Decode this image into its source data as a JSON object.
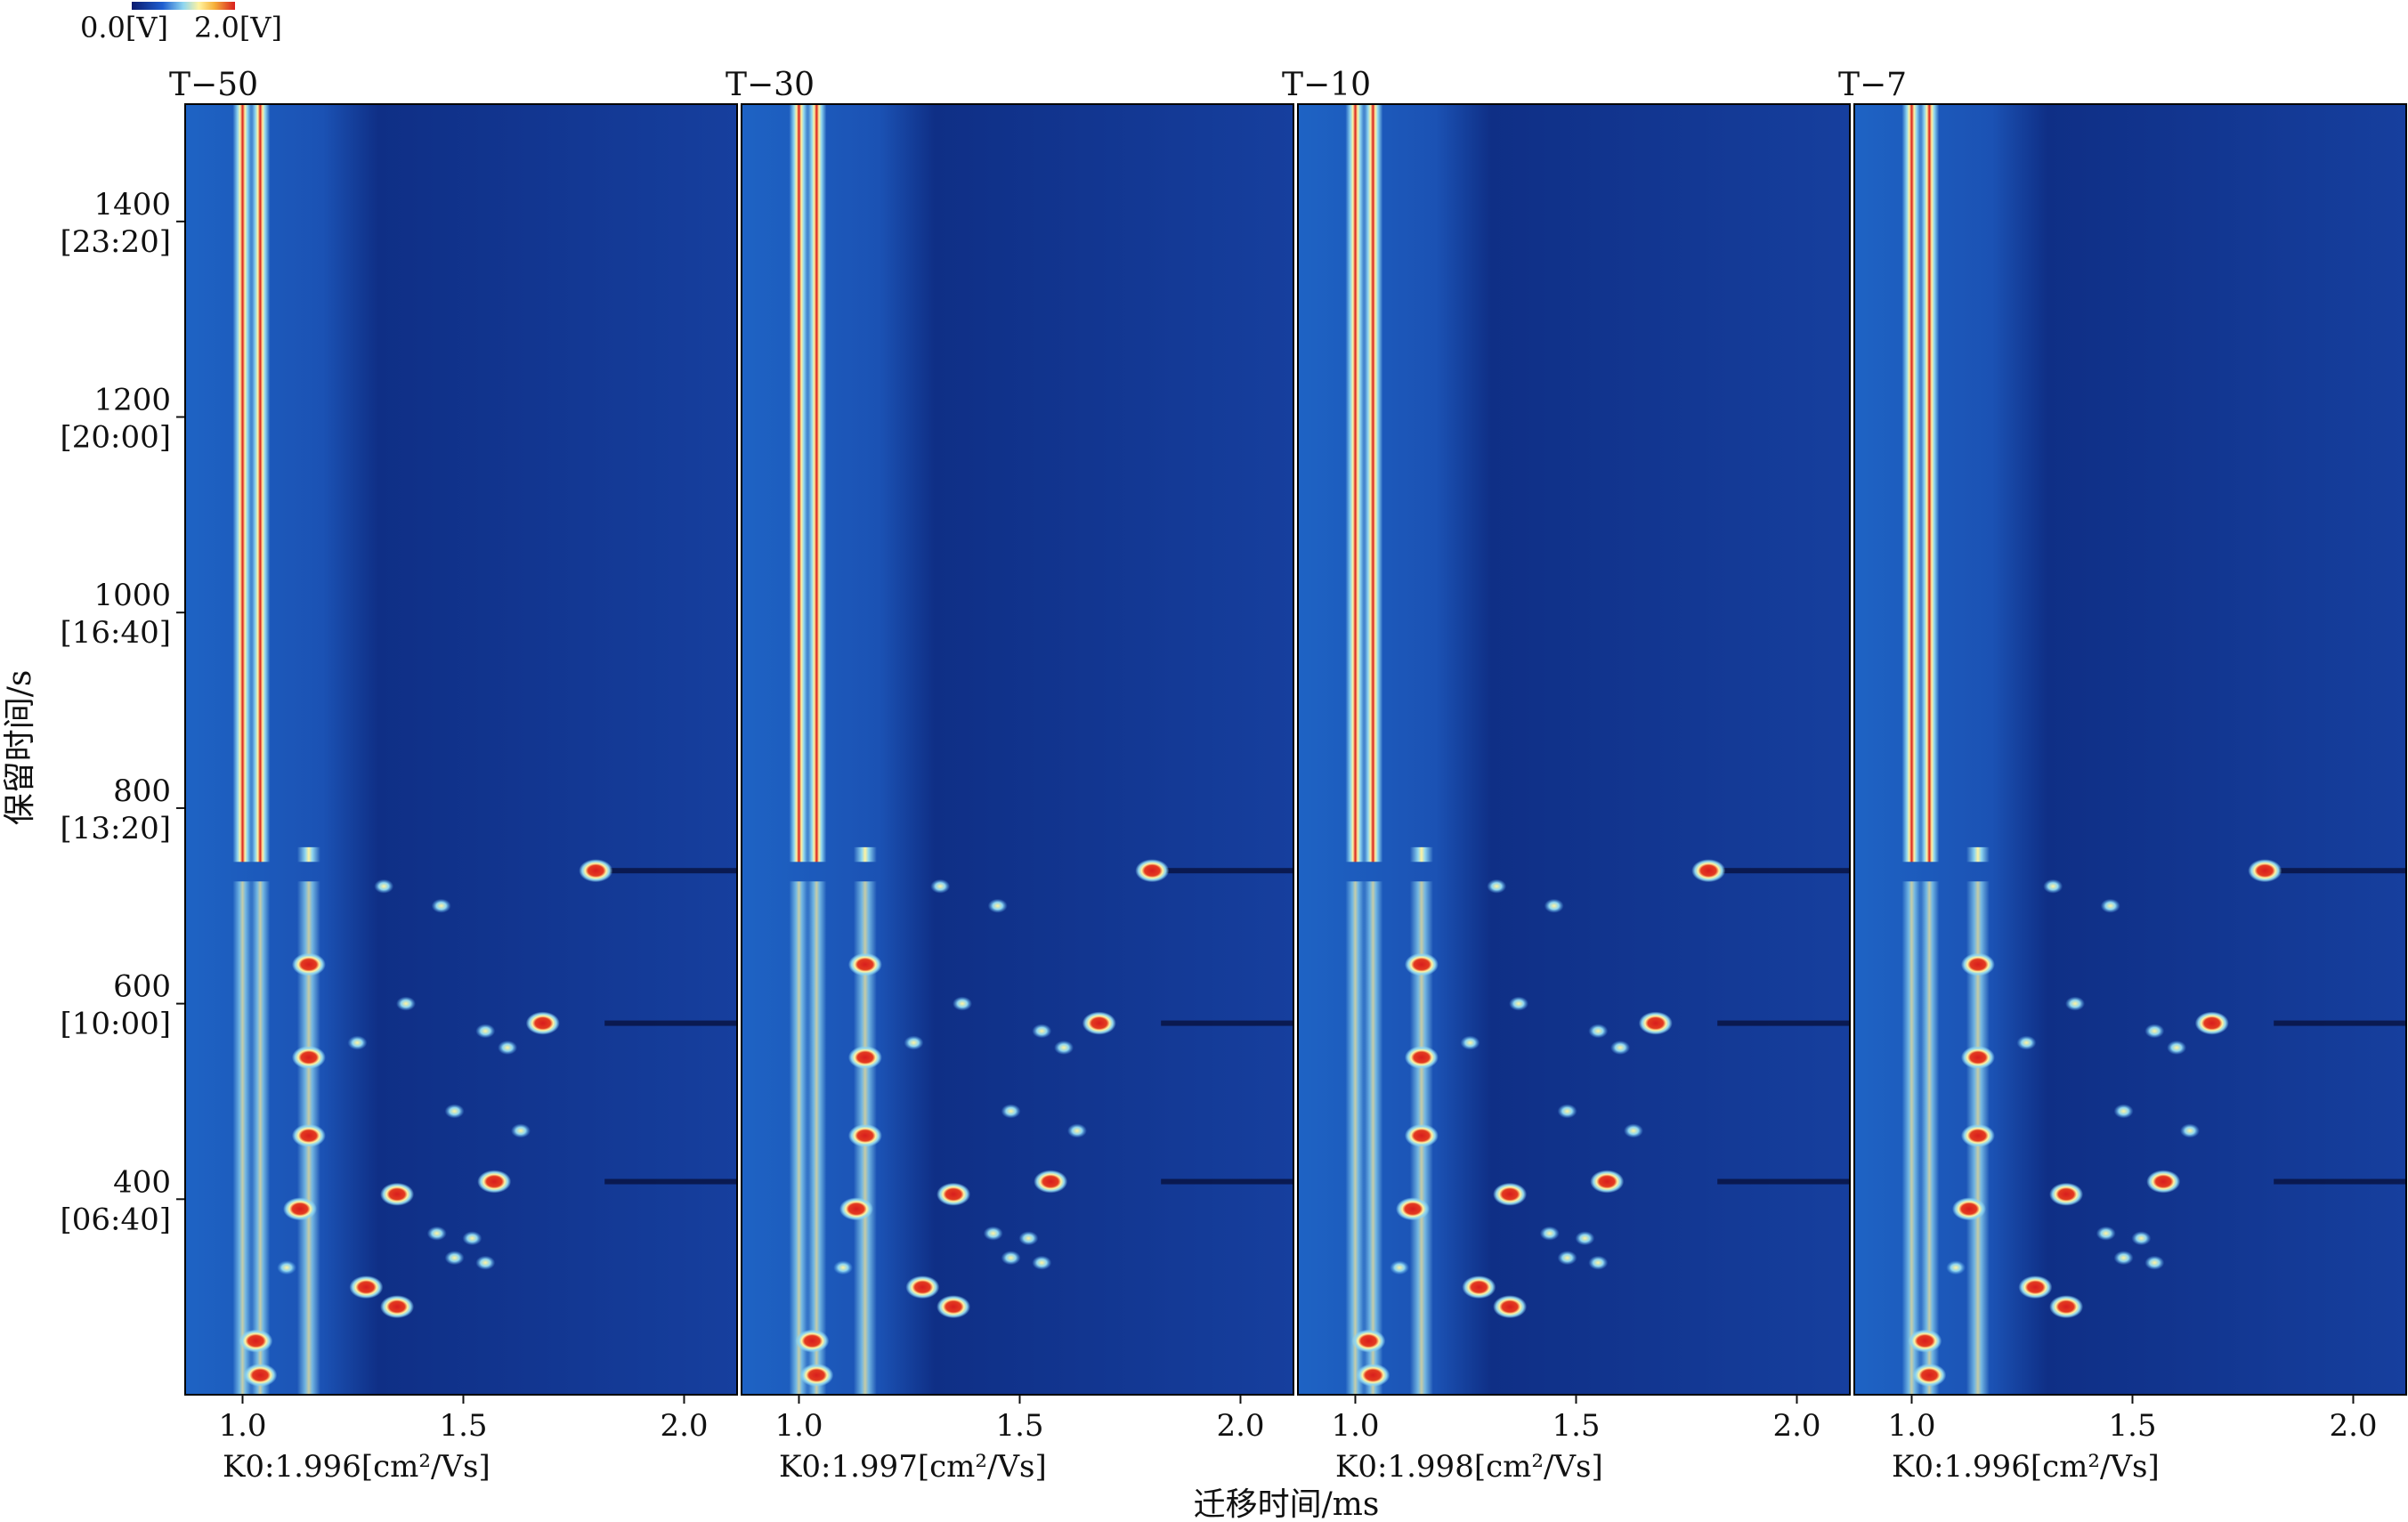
{
  "chart_data": {
    "type": "heatmap",
    "title": "",
    "xlabel": "迁移时间/ms",
    "ylabel": "保留时间/s",
    "colorbar": {
      "min_label": "0.0[V]",
      "max_label": "2.0[V]",
      "colors": [
        "#0a1a6e",
        "#1f5fd0",
        "#8fd6f0",
        "#fff3a0",
        "#f6b13a",
        "#d81e1e"
      ]
    },
    "xlim": [
      0.87,
      2.12
    ],
    "ylim": [
      200,
      1520
    ],
    "x_ticks": [
      "1.0",
      "1.5",
      "2.0"
    ],
    "x_tick_values": [
      1.0,
      1.5,
      2.0
    ],
    "y_ticks": [
      {
        "value": 400,
        "label": "400",
        "sub": "[06:40]"
      },
      {
        "value": 600,
        "label": "600",
        "sub": "[10:00]"
      },
      {
        "value": 800,
        "label": "800",
        "sub": "[13:20]"
      },
      {
        "value": 1000,
        "label": "1000",
        "sub": "[16:40]"
      },
      {
        "value": 1200,
        "label": "1200",
        "sub": "[20:00]"
      },
      {
        "value": 1400,
        "label": "1400",
        "sub": "[23:20]"
      }
    ],
    "panels": [
      {
        "name": "T−50",
        "k0": "K0:1.996[cm²/Vs]"
      },
      {
        "name": "T−30",
        "k0": "K0:1.997[cm²/Vs]"
      },
      {
        "name": "T−10",
        "k0": "K0:1.998[cm²/Vs]"
      },
      {
        "name": "T−7",
        "k0": "K0:1.996[cm²/Vs]"
      }
    ],
    "peaks": [
      {
        "x": 1.8,
        "y": 736,
        "intensity": 2.0
      },
      {
        "x": 1.68,
        "y": 580,
        "intensity": 2.0
      },
      {
        "x": 1.57,
        "y": 418,
        "intensity": 2.0
      },
      {
        "x": 1.63,
        "y": 470,
        "intensity": 1.4
      },
      {
        "x": 1.35,
        "y": 290,
        "intensity": 2.0
      },
      {
        "x": 1.28,
        "y": 310,
        "intensity": 2.0
      },
      {
        "x": 1.15,
        "y": 545,
        "intensity": 2.0
      },
      {
        "x": 1.15,
        "y": 640,
        "intensity": 2.0
      },
      {
        "x": 1.15,
        "y": 465,
        "intensity": 1.8
      },
      {
        "x": 1.35,
        "y": 405,
        "intensity": 1.6
      },
      {
        "x": 1.03,
        "y": 255,
        "intensity": 2.0
      },
      {
        "x": 1.04,
        "y": 220,
        "intensity": 2.0
      },
      {
        "x": 1.13,
        "y": 390,
        "intensity": 1.6
      },
      {
        "x": 1.1,
        "y": 330,
        "intensity": 1.2
      },
      {
        "x": 1.48,
        "y": 340,
        "intensity": 1.2
      },
      {
        "x": 1.55,
        "y": 335,
        "intensity": 1.1
      },
      {
        "x": 1.44,
        "y": 365,
        "intensity": 1.0
      },
      {
        "x": 1.52,
        "y": 360,
        "intensity": 1.0
      },
      {
        "x": 1.26,
        "y": 560,
        "intensity": 1.0
      },
      {
        "x": 1.55,
        "y": 572,
        "intensity": 0.9
      },
      {
        "x": 1.37,
        "y": 600,
        "intensity": 0.9
      },
      {
        "x": 1.48,
        "y": 490,
        "intensity": 0.9
      },
      {
        "x": 1.6,
        "y": 555,
        "intensity": 0.9
      },
      {
        "x": 1.45,
        "y": 700,
        "intensity": 0.8
      },
      {
        "x": 1.32,
        "y": 720,
        "intensity": 0.8
      }
    ],
    "vertical_bands": [
      {
        "x": 1.0,
        "intensity": 2.0
      },
      {
        "x": 1.04,
        "intensity": 1.7
      },
      {
        "x": 1.15,
        "intensity": 1.0
      }
    ]
  }
}
